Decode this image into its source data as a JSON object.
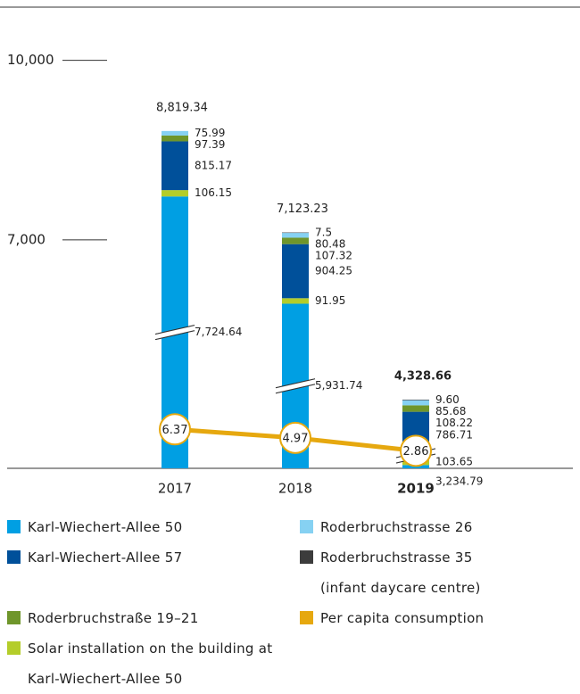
{
  "chart_data": {
    "type": "bar",
    "categories": [
      "2017",
      "2018",
      "2019"
    ],
    "ylim": [
      3180,
      10860
    ],
    "yticks": [
      {
        "value": 7000,
        "label": "7,000"
      },
      {
        "value": 10000,
        "label": "10,000"
      }
    ],
    "y2lim": [
      0,
      75
    ],
    "series": [
      {
        "name": "Karl-Wiechert-Allee 50",
        "color": "#009fe3",
        "values": [
          7724.64,
          5931.74,
          3234.79
        ],
        "value_labels": [
          "7,724.64",
          "5,931.74",
          "3,234.79"
        ]
      },
      {
        "name": "Karl-Wiechert-Allee 57",
        "color": "#00509a",
        "values": [
          815.17,
          904.25,
          786.71
        ],
        "value_labels": [
          "815.17",
          "904.25",
          "786.71"
        ]
      },
      {
        "name": "Roderbruchstraße 19–21",
        "color": "#6f962b",
        "values": [
          97.39,
          107.32,
          108.22
        ],
        "value_labels": [
          "97.39",
          "107.32",
          "108.22"
        ]
      },
      {
        "name": "Solar installation on the building at Karl-Wiechert-Allee 50",
        "color": "#b4cd2a",
        "values": [
          106.15,
          91.95,
          103.65
        ],
        "value_labels": [
          "106.15",
          "91.95",
          "103.65"
        ]
      },
      {
        "name": "Roderbruchstrasse 26",
        "color": "#86d1f2",
        "values": [
          75.99,
          80.48,
          85.68
        ],
        "value_labels": [
          "75.99",
          "80.48",
          "85.68"
        ]
      },
      {
        "name": "Roderbruchstrasse 35 (infant daycare centre)",
        "color": "#3c3c3c",
        "values": [
          null,
          7.5,
          9.6
        ],
        "value_labels": [
          null,
          "7.5",
          "9.60"
        ]
      },
      {
        "name": "Per capita consumption",
        "color": "#e6a80f",
        "type": "line",
        "axis": "y2",
        "values": [
          6.37,
          4.97,
          2.86
        ]
      }
    ],
    "totals": [
      8819.34,
      7123.23,
      4328.66
    ],
    "totals_labels": [
      "8,819.34",
      "7,123.23",
      "4,328.66"
    ]
  }
}
